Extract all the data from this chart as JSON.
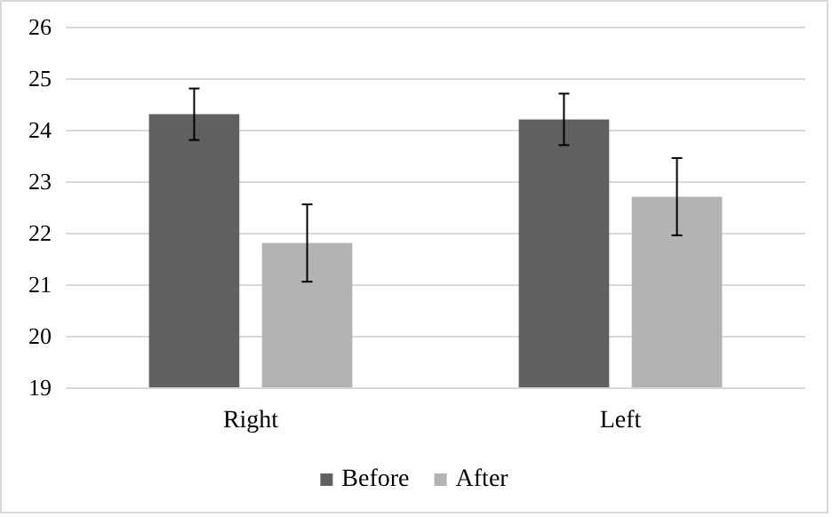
{
  "chart_data": {
    "type": "bar",
    "categories": [
      "Right",
      "Left"
    ],
    "series": [
      {
        "name": "Before",
        "color": "#606060",
        "values": [
          24.3,
          24.2
        ],
        "errors": [
          0.5,
          0.5
        ]
      },
      {
        "name": "After",
        "color": "#b3b3b3",
        "values": [
          21.8,
          22.7
        ],
        "errors": [
          0.75,
          0.75
        ]
      }
    ],
    "ylim": [
      19,
      26
    ],
    "yticks": [
      19,
      20,
      21,
      22,
      23,
      24,
      25,
      26
    ],
    "grid": "y",
    "legend": "bottom"
  }
}
